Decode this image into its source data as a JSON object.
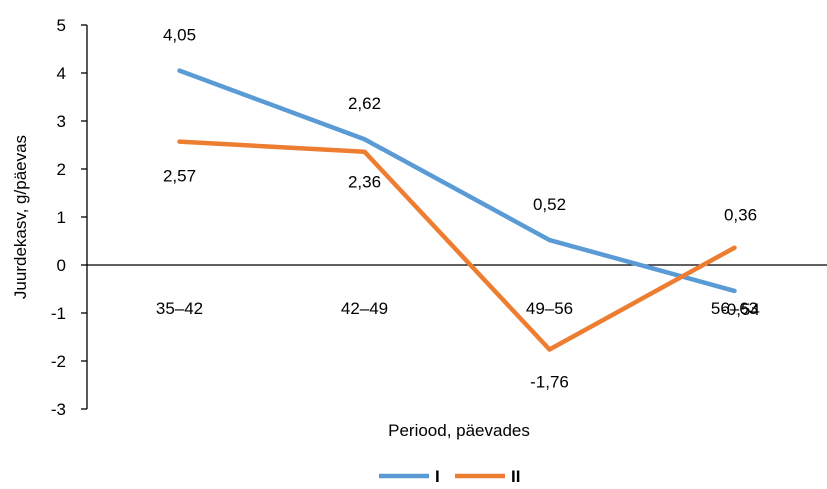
{
  "chart_data": {
    "type": "line",
    "title": "",
    "xlabel": "Periood, päevades",
    "ylabel": "Juurdekasv, g/päevas",
    "categories": [
      "35–42",
      "42–49",
      "49–56",
      "56–63"
    ],
    "ylim": [
      -3,
      5
    ],
    "yticks": [
      "5",
      "4",
      "3",
      "2",
      "1",
      "0",
      "-1",
      "-2",
      "-3"
    ],
    "grid": false,
    "legend_position": "bottom",
    "series": [
      {
        "name": "I",
        "color": "#5B9BD5",
        "values": [
          4.05,
          2.62,
          0.52,
          -0.54
        ],
        "labels": [
          "4,05",
          "2,62",
          "0,52",
          "-0,54"
        ]
      },
      {
        "name": "II",
        "color": "#ED7D31",
        "values": [
          2.57,
          2.36,
          -1.76,
          0.36
        ],
        "labels": [
          "2,57",
          "2,36",
          "-1,76",
          "0,36"
        ]
      }
    ]
  }
}
